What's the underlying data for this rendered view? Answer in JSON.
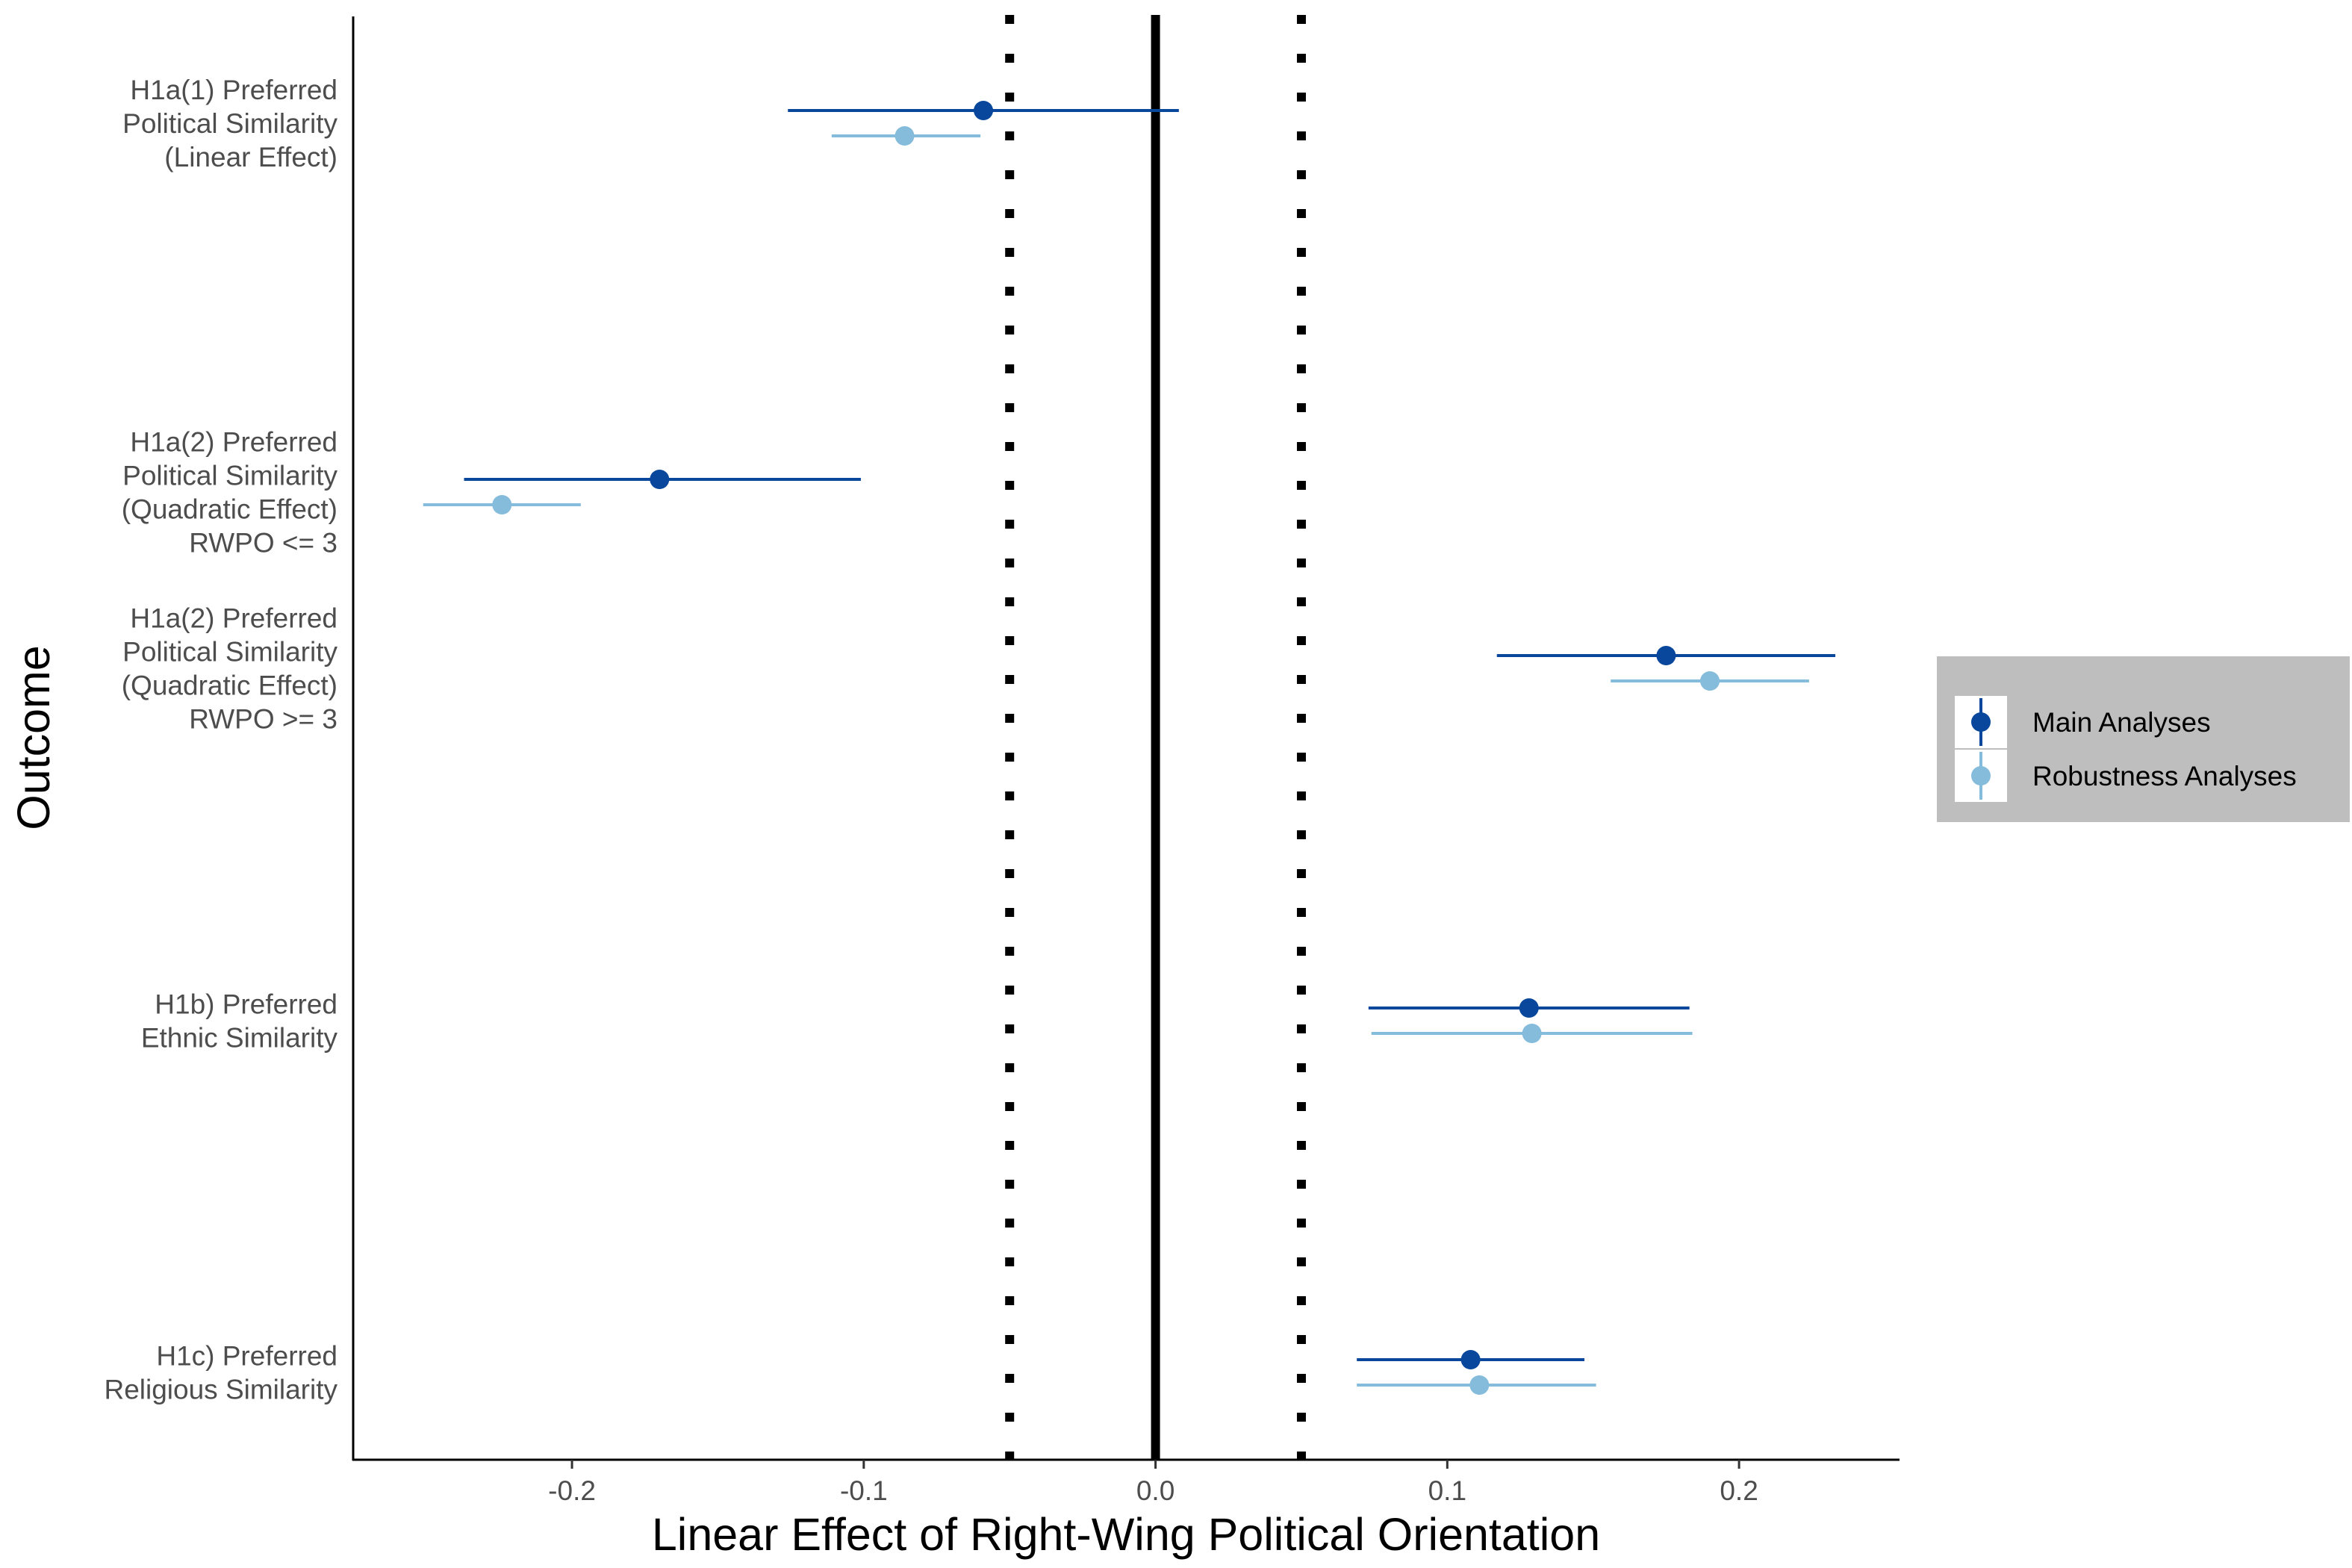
{
  "chart_data": {
    "type": "forest",
    "xlabel": "Linear Effect of Right-Wing Political Orientation",
    "ylabel": "Outcome",
    "xlim": [
      -0.275,
      0.255
    ],
    "x_ticks": [
      -0.2,
      -0.1,
      0.0,
      0.1,
      0.2
    ],
    "x_tick_labels": [
      "-0.2",
      "-0.1",
      "0.0",
      "0.1",
      "0.2"
    ],
    "reference_lines": [
      {
        "x": 0.0,
        "style": "solid"
      },
      {
        "x": -0.05,
        "style": "dotted"
      },
      {
        "x": 0.05,
        "style": "dotted"
      }
    ],
    "grid": false,
    "legend_position": "right",
    "categories": [
      {
        "lines": [
          "H1a(1) Preferred",
          "Political Similarity",
          "(Linear Effect)"
        ]
      },
      {
        "lines": [
          "H1a(2) Preferred",
          "Political Similarity",
          "(Quadratic Effect)",
          "RWPO <= 3"
        ]
      },
      {
        "lines": [
          "H1a(2) Preferred",
          "Political Similarity",
          "(Quadratic Effect)",
          "RWPO >= 3"
        ]
      },
      {
        "lines": [
          "H1b) Preferred",
          "Ethnic Similarity"
        ]
      },
      {
        "lines": [
          "H1c) Preferred",
          "Religious Similarity"
        ]
      }
    ],
    "series": [
      {
        "name": "Main Analyses",
        "color": "#08479b",
        "estimates": [
          -0.059,
          -0.17,
          0.175,
          0.128,
          0.108
        ],
        "ci_low": [
          -0.126,
          -0.237,
          0.117,
          0.073,
          0.069
        ],
        "ci_high": [
          0.008,
          -0.101,
          0.233,
          0.183,
          0.147
        ]
      },
      {
        "name": "Robustness Analyses",
        "color": "#85bcdb",
        "estimates": [
          -0.086,
          -0.224,
          0.19,
          0.129,
          0.111
        ],
        "ci_low": [
          -0.111,
          -0.251,
          0.156,
          0.074,
          0.069
        ],
        "ci_high": [
          -0.06,
          -0.197,
          0.224,
          0.184,
          0.151
        ]
      }
    ]
  }
}
